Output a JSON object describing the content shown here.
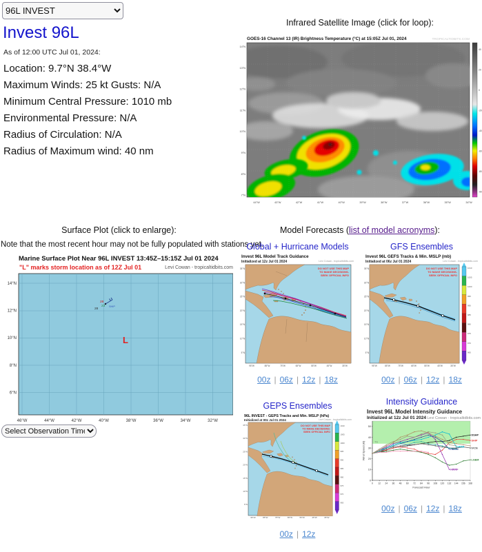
{
  "ui": {
    "sep": "|"
  },
  "storm_selector": {
    "value": "96L INVEST"
  },
  "header": {
    "title": "Invest 96L",
    "as_of": "As of 12:00 UTC Jul 01, 2024:"
  },
  "storm_info": {
    "lines": [
      "Location: 9.7°N 38.4°W",
      "Maximum Winds: 25 kt  Gusts: N/A",
      "Minimum Central Pressure: 1010 mb",
      "Environmental Pressure: N/A",
      "Radius of Circulation: N/A",
      "Radius of Maximum wind: 40 nm"
    ]
  },
  "satellite": {
    "caption": "Infrared Satellite Image (click for loop):",
    "image_title": "GOES-16 Channel 13 (IR) Brightness Temperature (°C) at 15:05Z Jul 01, 2024",
    "watermark": "TROPICALTIDBITS.COM",
    "lat_labels": [
      "14°N",
      "13°N",
      "12°N",
      "11°N",
      "10°N",
      "9°N",
      "8°N",
      "7°N"
    ],
    "lon_labels": [
      "44°W",
      "43°W",
      "42°W",
      "41°W",
      "40°W",
      "39°W",
      "38°W",
      "37°W",
      "36°W",
      "35°W",
      "34°W"
    ],
    "colorbar_labels": [
      "40",
      "20",
      "0",
      "-20",
      "-40",
      "-60",
      "-80",
      "-90"
    ]
  },
  "surface_plot": {
    "caption": "Surface Plot (click to enlarge):",
    "note": "Note that the most recent hour may not be fully populated with stations yet.",
    "plot_title": "Marine Surface Plot Near 96L INVEST 13:45Z–15:15Z Jul 01 2024",
    "plot_subtitle": "\"L\" marks storm location as of 12Z Jul 01",
    "credit": "Levi Cowan - tropicaltidbits.com",
    "lat_labels": [
      "14°N",
      "12°N",
      "10°N",
      "8°N",
      "6°N"
    ],
    "lon_labels": [
      "46°W",
      "44°W",
      "42°W",
      "40°W",
      "38°W",
      "36°W",
      "34°W",
      "32°W"
    ],
    "storm_marker": "L",
    "station": {
      "temp": "28",
      "dewpoint": "23",
      "pressure": "28",
      "id": "SHIP"
    },
    "time_selector_label": "Select Observation Time..."
  },
  "model_forecasts": {
    "heading_prefix": "Model Forecasts (",
    "acronyms_link": "list of model acronyms",
    "heading_suffix": "):",
    "map_warning": [
      "DO NOT USE THIS MAP",
      "TO MAKE DECISIONS-",
      "SEEK OFFICIAL INFO"
    ],
    "map_axes": {
      "lat": [
        "35°N",
        "30°N",
        "25°N",
        "20°N",
        "15°N",
        "10°N",
        "5°N"
      ],
      "lon": [
        "95°W",
        "85°W",
        "75°W",
        "65°W",
        "55°W",
        "45°W",
        "35°W"
      ]
    },
    "colorbar_labels": [
      "1010",
      "1005",
      "1000",
      "995",
      "990",
      "985",
      "980",
      "975",
      "970",
      "965"
    ],
    "panels": [
      {
        "header": "Global + Hurricane Models",
        "map_title": "Invest 96L Model Track Guidance",
        "init": "Initialized at 12z Jul 01 2024",
        "credit": "Levi Cowan - tropicaltidbits.com",
        "links": [
          "00z",
          "06z",
          "12z",
          "18z"
        ]
      },
      {
        "header": "GFS Ensembles",
        "map_title": "Invest 96L GEFS Tracks & Min. MSLP (mb)",
        "init": "Initialized at 06z Jul 01 2024",
        "credit": "Levi Cowan - tropicaltidbits.com",
        "links": [
          "00z",
          "06z",
          "12z",
          "18z"
        ]
      },
      {
        "header": "GEPS Ensembles",
        "map_title": "96L INVEST - GEPS Tracks and Min. MSLP (hPa)",
        "init": "Initialized at 00z Jul 01 2024",
        "credit": "Levi Cowan - tropicaltidbits.com",
        "links": [
          "00z",
          "12z"
        ]
      },
      {
        "header": "Intensity Guidance",
        "map_title": "Invest 96L Model Intensity Guidance",
        "init": "Initialized at 12z Jul 01 2024",
        "credit": "Levi Cowan - tropicaltidbits.com",
        "links": [
          "00z",
          "06z",
          "12z",
          "18z"
        ]
      }
    ]
  },
  "chart_data": {
    "type": "line",
    "title": "Invest 96L Model Intensity Guidance",
    "xlabel": "Forecast Hour",
    "ylabel": "Wind Speed (kt)",
    "xlim": [
      0,
      168
    ],
    "ylim": [
      0,
      55
    ],
    "x_step": 12,
    "x_ticks": [
      0,
      12,
      24,
      36,
      48,
      60,
      72,
      84,
      96,
      108,
      120,
      132,
      144,
      156,
      168
    ],
    "y_ticks": [
      0,
      10,
      20,
      30,
      40,
      50
    ],
    "ts_threshold": 34,
    "ts_label": "TS",
    "legend_position": "line-end-labels",
    "grid": false,
    "series": [
      {
        "name": "DSHP",
        "color": "#1a1a1a",
        "label": true,
        "values": [
          25,
          26,
          28,
          30,
          31,
          32,
          33,
          34,
          35,
          36,
          36,
          37,
          40,
          41,
          42
        ]
      },
      {
        "name": "SHIP",
        "color": "#e53935",
        "label": true,
        "values": [
          25,
          27,
          28,
          30,
          31,
          30,
          29,
          26,
          25,
          24,
          28,
          35,
          38,
          38,
          37
        ]
      },
      {
        "name": "IVCN",
        "color": "#4a4a4a",
        "label": true,
        "values": [
          25,
          27,
          29,
          31,
          32,
          33,
          33,
          34,
          33,
          32,
          31,
          30,
          30,
          31,
          30
        ]
      },
      {
        "name": "LGEM",
        "color": "#2e7d32",
        "label": true,
        "values": [
          25,
          26,
          27,
          28,
          29,
          28,
          27,
          26,
          24,
          21,
          17,
          14,
          15,
          18,
          19
        ]
      },
      {
        "name": "HFSA",
        "color": "#00b8d4",
        "label": true,
        "values": [
          25,
          28,
          30,
          33,
          35,
          36,
          37,
          38,
          40,
          42,
          45,
          43,
          31
        ]
      },
      {
        "name": "HMON",
        "color": "#283593",
        "label": true,
        "values": [
          25,
          27,
          30,
          32,
          34,
          36,
          38,
          40,
          42,
          40,
          36,
          29
        ]
      },
      {
        "name": "HWRF",
        "color": "#8e24aa",
        "label": true,
        "values": [
          25,
          28,
          31,
          34,
          36,
          38,
          40,
          42,
          44,
          38,
          24,
          10
        ]
      },
      {
        "name": "AVNO",
        "color": "#98987a",
        "label": false,
        "values": [
          25,
          29,
          33,
          36,
          38,
          41,
          40,
          43,
          45,
          44,
          42,
          33,
          32
        ]
      },
      {
        "name": "CTCX",
        "color": "#f48fb1",
        "label": false,
        "values": [
          25,
          26,
          26,
          27,
          27,
          27,
          27,
          27,
          26
        ]
      },
      {
        "name": "HCCA",
        "color": "#26a69a",
        "label": false,
        "values": [
          25,
          27,
          30,
          32,
          34,
          33,
          35,
          36,
          34,
          33,
          32,
          30,
          29
        ]
      },
      {
        "name": "CEMN",
        "color": "#b0895f",
        "label": false,
        "values": [
          25,
          28,
          32,
          35,
          40,
          42,
          45,
          46,
          44,
          41,
          38,
          35,
          34,
          33,
          32
        ]
      }
    ]
  }
}
